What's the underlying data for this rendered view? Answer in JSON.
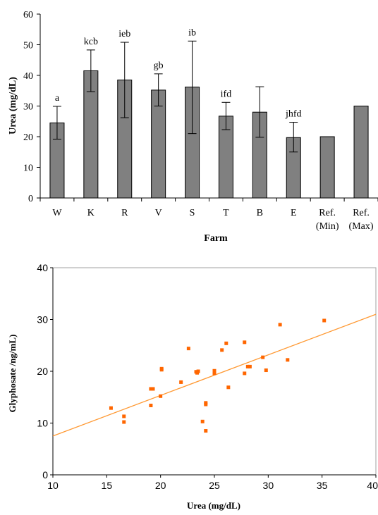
{
  "chart_data": [
    {
      "type": "bar",
      "title": "",
      "xlabel": "Farm",
      "ylabel": "Urea (mg/dL)",
      "ylim": [
        0,
        60
      ],
      "yticks": [
        "0",
        "10",
        "20",
        "30",
        "40",
        "50",
        "60"
      ],
      "categories": [
        {
          "line1": "W",
          "line2": ""
        },
        {
          "line1": "K",
          "line2": ""
        },
        {
          "line1": "R",
          "line2": ""
        },
        {
          "line1": "V",
          "line2": ""
        },
        {
          "line1": "S",
          "line2": ""
        },
        {
          "line1": "T",
          "line2": ""
        },
        {
          "line1": "B",
          "line2": ""
        },
        {
          "line1": "E",
          "line2": ""
        },
        {
          "line1": "Ref.",
          "line2": "(Min)"
        },
        {
          "line1": "Ref.",
          "line2": "(Max)"
        }
      ],
      "values": [
        24.5,
        41.5,
        38.5,
        35.2,
        36.2,
        26.7,
        28.0,
        19.7,
        20.0,
        30.0
      ],
      "error_low": [
        19.2,
        34.7,
        26.2,
        30.0,
        21.0,
        22.3,
        19.8,
        15.0,
        null,
        null
      ],
      "error_high": [
        29.9,
        48.3,
        50.8,
        40.5,
        51.2,
        31.2,
        36.3,
        24.7,
        null,
        null
      ],
      "annotations": [
        "a",
        "kcb",
        "ieb",
        "gb",
        "ib",
        "ifd",
        "",
        "jhfd",
        "",
        ""
      ],
      "bar_color": "#808080"
    },
    {
      "type": "scatter",
      "title": "",
      "xlabel": "Urea (mg/dL)",
      "ylabel": "Glyphosate /ng/mL)",
      "xlim": [
        10,
        40
      ],
      "ylim": [
        0,
        40
      ],
      "xticks": [
        "10",
        "15",
        "20",
        "25",
        "30",
        "35",
        "40"
      ],
      "yticks": [
        "0",
        "10",
        "20",
        "30",
        "40"
      ],
      "points": [
        [
          15.4,
          12.9
        ],
        [
          16.6,
          11.3
        ],
        [
          16.6,
          10.2
        ],
        [
          19.1,
          13.4
        ],
        [
          19.1,
          16.6
        ],
        [
          19.3,
          16.6
        ],
        [
          20.0,
          15.2
        ],
        [
          20.1,
          20.5
        ],
        [
          20.1,
          20.3
        ],
        [
          21.9,
          17.9
        ],
        [
          22.6,
          24.4
        ],
        [
          23.3,
          19.9
        ],
        [
          23.5,
          20.0
        ],
        [
          23.4,
          19.7
        ],
        [
          23.9,
          10.3
        ],
        [
          24.2,
          13.6
        ],
        [
          24.2,
          13.9
        ],
        [
          24.2,
          8.5
        ],
        [
          25.0,
          20.1
        ],
        [
          25.0,
          19.6
        ],
        [
          25.7,
          24.1
        ],
        [
          26.1,
          25.4
        ],
        [
          26.3,
          16.9
        ],
        [
          27.8,
          25.6
        ],
        [
          27.8,
          19.6
        ],
        [
          28.1,
          20.9
        ],
        [
          28.3,
          20.9
        ],
        [
          29.5,
          22.7
        ],
        [
          29.8,
          20.2
        ],
        [
          31.1,
          29.0
        ],
        [
          31.8,
          22.2
        ],
        [
          35.2,
          29.8
        ]
      ],
      "trendline": {
        "x": [
          10,
          40
        ],
        "y": [
          7.5,
          31.0
        ]
      },
      "point_color": "#ff6600",
      "line_color": "#ff9933"
    }
  ]
}
